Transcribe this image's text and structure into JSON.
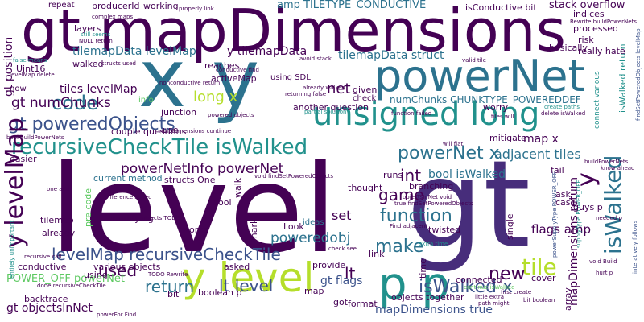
{
  "palette": {
    "background": "#ffffff",
    "c1": "#440154",
    "c2": "#3b528b",
    "c3": "#21918c",
    "c4": "#5ec962",
    "c5": "#b5de2b",
    "c6": "#2c728e",
    "c7": "#472d7b"
  },
  "words": {
    "level": "level",
    "gt": "gt",
    "gt_mapDimensions": "gt mapDimensions",
    "x_y": "x y",
    "powerNet": "powerNet",
    "unsigned_long": "unsigned long",
    "p_p": "p p",
    "y_level": "y level",
    "recursiveCheckTile_isWalked": "recursiveCheckTile isWalked",
    "isWalked_x": "isWalked x",
    "gt_poweredObjects": "gt poweredObjects",
    "levelMap_recursiveCheckTile": "levelMap recursiveCheckTile",
    "powerNet_x": "powerNet x",
    "powerNetInfo_powerNet": "powerNetInfo powerNet",
    "lt_level": "lt level",
    "tile": "tile",
    "function": "function",
    "code": "code",
    "game": "game",
    "make": "make",
    "new": "new",
    "return": "return",
    "int": "int",
    "set": "set",
    "lt": "lt",
    "used": "used",
    "y_levelMap": "y levelMap",
    "isWalked_vertical": "isWalked",
    "y_vertical": "y",
    "gt_numChunks": "gt numChunks",
    "tilemapData_levelMap": "tilemapData levelMap",
    "y_tilemapData": "y tilemapData",
    "tilemapData_struct": "tilemapData struct",
    "tiles_levelMap": "tiles levelMap",
    "long_x": "long x",
    "net": "net",
    "numChunks_CHUNKTYPE_POWEREDDEF": "numChunks CHUNKTYPE_POWEREDDEF",
    "adjacent_tiles": "adjacent tiles",
    "map_x": "map x",
    "bool_isWalked": "bool isWalked",
    "poweredobj": "poweredobj",
    "flags_amp": "flags amp",
    "mapDimensions_true": "mapDimensions true",
    "isWalked_x_small": "isWalked x",
    "gt_objectsInNet": "gt objectsInNet",
    "gt_flags": "gt flags",
    "POWER_OFF_powerNet": "POWER_OFF powerNet",
    "gt_position": "gt position",
    "amp_TILETYPE_CONDUCTIVE": "amp TILETYPE_CONDUCTIVE",
    "stack_overflow": "stack overflow",
    "mapDimensions_return": "mapDimensions return",
    "isWalked_return": "isWalked return",
    "layers": "layers",
    "repeat": "repeat",
    "producerId": "producerId",
    "working": "working",
    "isConductive_bit": "isConductive bit",
    "indices": "indices",
    "processed": "processed",
    "risk": "risk",
    "basically": "basically",
    "really_hate": "really hate",
    "reaches": "reaches",
    "activeMap": "activeMap",
    "Uint16": "Uint16",
    "walked": "walked",
    "info": "info",
    "couple_questions": "couple questions",
    "another_question": "another question",
    "given": "given",
    "check": "check",
    "worry": "worry",
    "conductive": "conductive",
    "various_objects": "various objects",
    "using_SDL": "using SDL",
    "boolean_p": "boolean p",
    "bool": "bool",
    "current_method": "current method",
    "structs_One": "structs One",
    "thought": "thought",
    "branching": "branching",
    "runs": "runs",
    "fail": "fail",
    "ask": "ask",
    "case": "case",
    "guys_p": "guys p",
    "works": "works",
    "modifying": "modifying",
    "Look": "Look",
    "ideas": "ideas",
    "twisted": "twisted",
    "objects_together": "objects together",
    "link": "link",
    "provide": "provide",
    "asked": "asked",
    "connected": "connected",
    "cover": "cover",
    "map": "map",
    "format": "format",
    "got": "got",
    "bit": "bit",
    "using": "using",
    "backtrace": "backtrace",
    "already": "already",
    "tilemap": "tilemap",
    "junction": "junction",
    "easier": "easier",
    "mitigate": "mitigate",
    "now": "now",
    "use": "use",
    "walk": "walk",
    "pre_code": "pre code",
    "single": "single",
    "array": "array",
    "time": "time",
    "mark": "mark",
    "small_1": "complex maps",
    "small_2": "still seems",
    "small_3": "NULL return",
    "small_4": "false means",
    "small_5": "structs used",
    "small_6": "nonconductive return",
    "small_7": "conductive find",
    "small_8": "levelMap delete",
    "small_9": "already walked",
    "small_10": "returning false",
    "small_11": "avoid stack",
    "small_12": "valid tile",
    "small_13": "partial solution",
    "small_14": "function failed",
    "small_15": "tiles will",
    "small_16": "delete isWalked",
    "small_17": "powered objects",
    "small_18": "bool buildPowerNets",
    "small_19": "void findSetPoweredObjects",
    "small_20": "true findSetPoweredObjects",
    "small_21": "objectsInNet void",
    "small_22": "Find adjacent",
    "small_23": "extra time",
    "small_24": "check see",
    "small_25": "first create",
    "small_26": "continue isWalked",
    "small_27": "done recursiveCheckTile",
    "small_28": "TODO Rewrite",
    "small_29": "objects TODO",
    "small_30": "difference speed",
    "small_31": "powerFor Find",
    "small_32": "path might",
    "small_33": "little extra",
    "small_34": "supplyType POWER_OFF",
    "small_35": "hurt p",
    "small_36": "void Build",
    "small_37": "needed p",
    "small_38": "will flat",
    "small_39": "create paths",
    "small_40": "know ahead",
    "small_41": "Rewrite buildPowerNets",
    "small_42": "buildPowerNets",
    "small_43": "interatively follows",
    "small_44": "entirely unimportant",
    "small_45": "recursive call",
    "small_46": "one add",
    "small_47": "properly link",
    "small_48": "mapDimensions continue",
    "small_49": "findSetPoweredObjects levelMap",
    "small_50": "connect various",
    "small_51": "powerSupplyType POWER_OFF",
    "small_52": "bit boolean",
    "small_53": "tiles will",
    "small_54": "Rewrite buildPowerNets"
  }
}
